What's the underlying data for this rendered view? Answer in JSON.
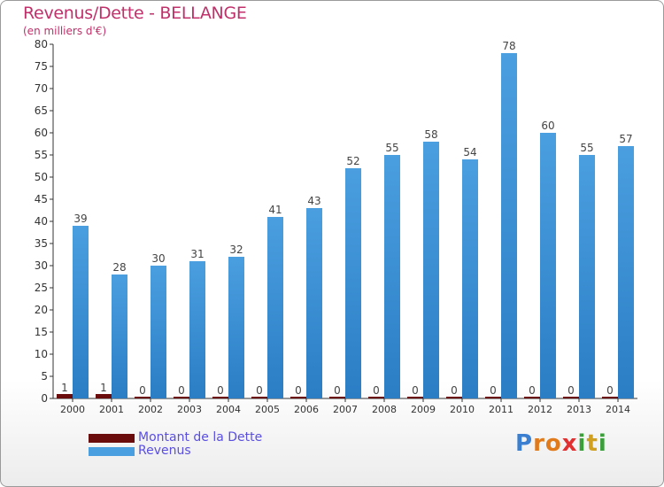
{
  "header": {
    "title": "Revenus/Dette - BELLANGE",
    "subtitle": "(en milliers d'€)"
  },
  "chart_data": {
    "type": "bar",
    "title": "Revenus/Dette - BELLANGE",
    "ylabel": "(en milliers d'€)",
    "categories": [
      "2000",
      "2001",
      "2002",
      "2003",
      "2004",
      "2005",
      "2006",
      "2007",
      "2008",
      "2009",
      "2010",
      "2011",
      "2012",
      "2013",
      "2014"
    ],
    "series": [
      {
        "name": "Montant de la Dette",
        "color": "#6b0c0c",
        "values": [
          1,
          1,
          0,
          0,
          0,
          0,
          0,
          0,
          0,
          0,
          0,
          0,
          0,
          0,
          0
        ]
      },
      {
        "name": "Revenus",
        "color": "#4a9fe0",
        "values": [
          39,
          28,
          30,
          31,
          32,
          41,
          43,
          52,
          55,
          58,
          54,
          78,
          60,
          55,
          57
        ]
      }
    ],
    "ylim": [
      0,
      80
    ],
    "yticks": [
      0,
      5,
      10,
      15,
      20,
      25,
      30,
      35,
      40,
      45,
      50,
      55,
      60,
      65,
      70,
      75,
      80
    ],
    "grid": false,
    "legend": "bottom-left"
  },
  "legend": {
    "items": [
      {
        "label": "Montant de la Dette",
        "color": "#6b0c0c"
      },
      {
        "label": "Revenus",
        "color": "#4a9fe0"
      }
    ]
  },
  "logo": {
    "letters": [
      "P",
      "r",
      "o",
      "x",
      "i",
      "t",
      "i"
    ],
    "colors": [
      "#3a7fd0",
      "#e07a1a",
      "#e07a1a",
      "#e03030",
      "#3a9f3a",
      "#d0a020",
      "#3a9f3a"
    ]
  }
}
